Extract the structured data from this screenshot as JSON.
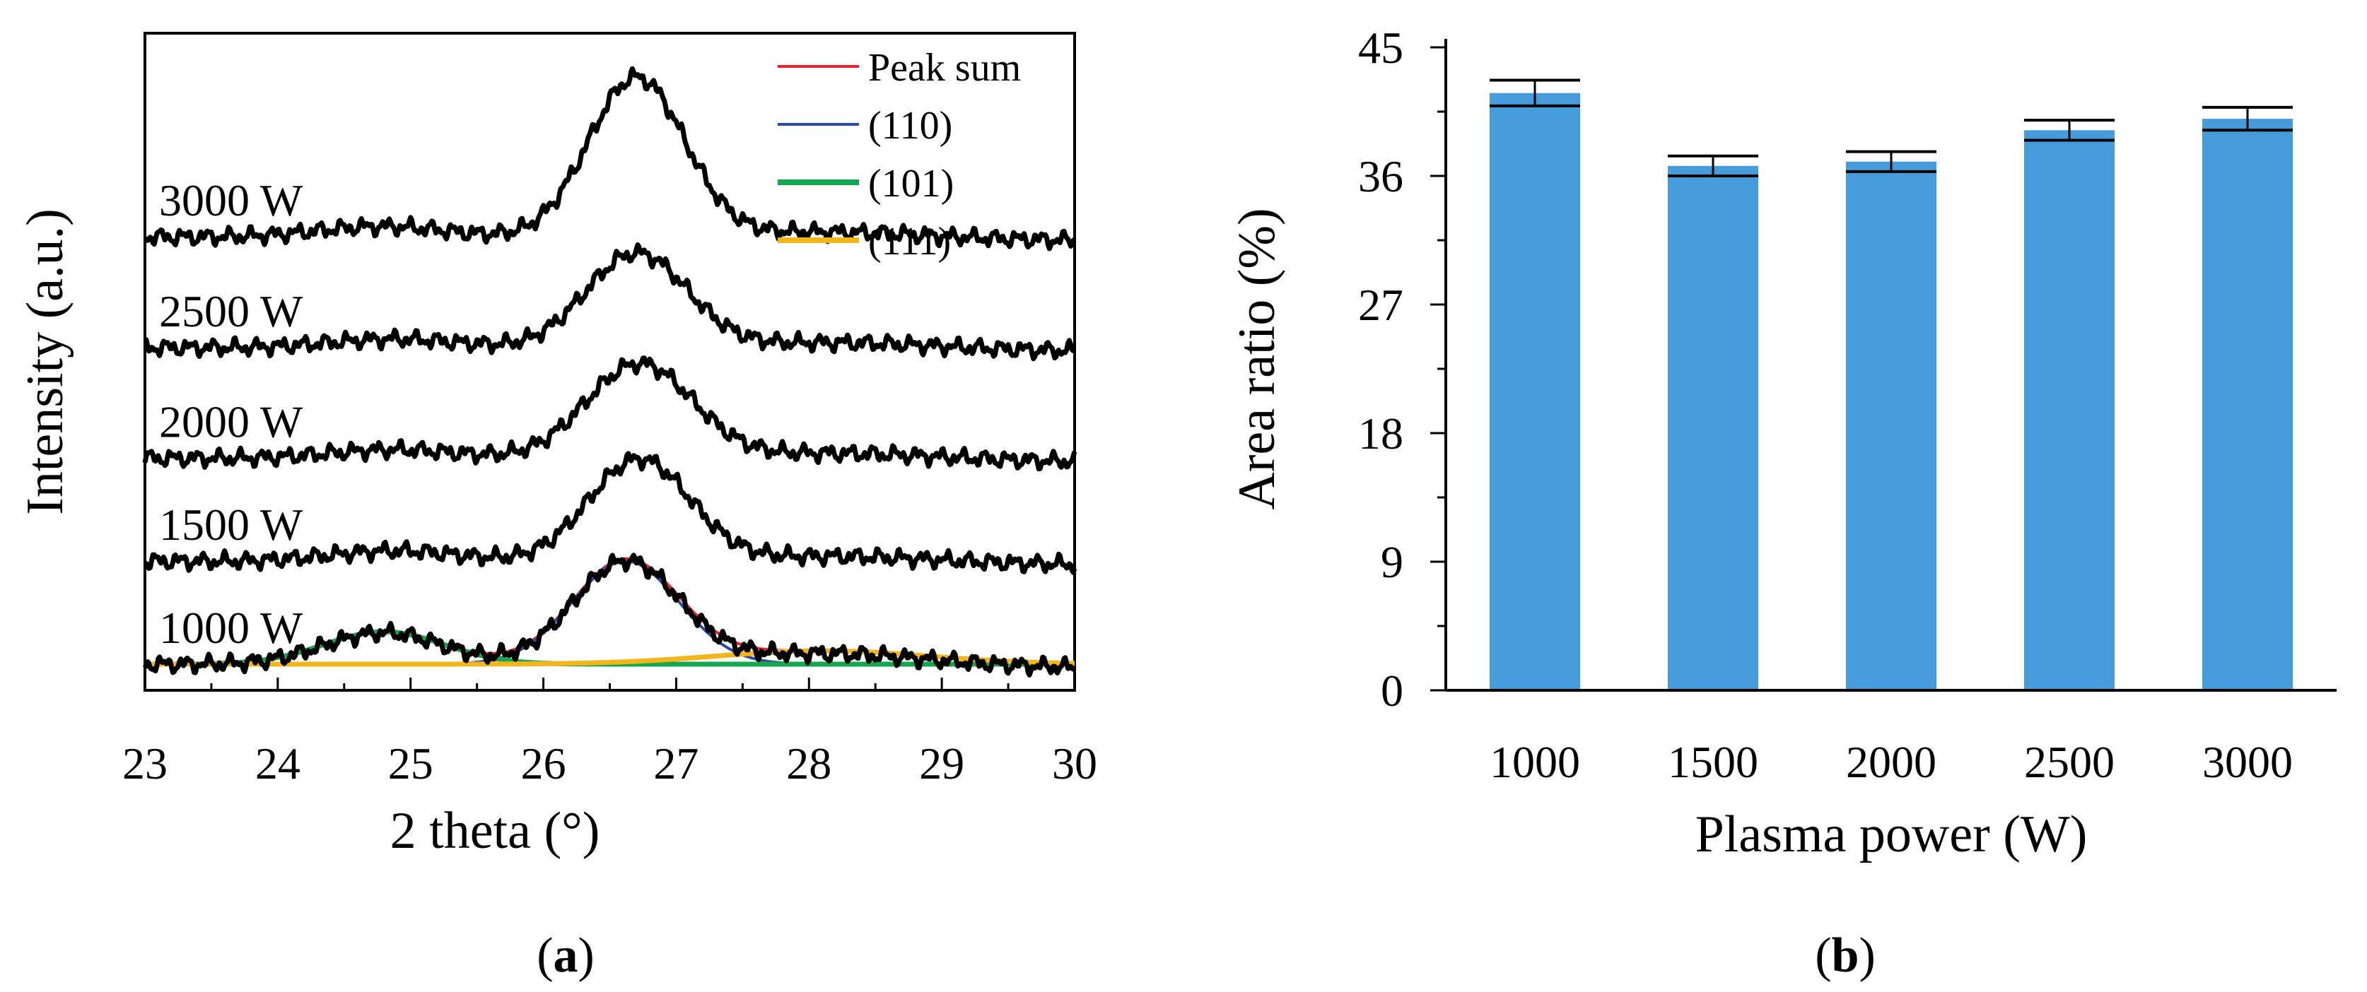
{
  "chart_data": [
    {
      "type": "line",
      "panel_label": "a",
      "xlabel": "2 theta (°)",
      "ylabel": "Intensity (a.u.)",
      "xlim": [
        23,
        30
      ],
      "x_ticks": [
        23,
        24,
        25,
        26,
        27,
        28,
        29,
        30
      ],
      "series": [
        {
          "name": "1000 W",
          "label": "1000 W",
          "offset": 0,
          "peaks": [
            {
              "center": 26.62,
              "height": 0.27,
              "width": 0.4
            },
            {
              "center": 24.8,
              "height": 0.085,
              "width": 0.45
            },
            {
              "center": 28.1,
              "height": 0.035,
              "width": 0.8
            }
          ]
        },
        {
          "name": "1500 W",
          "label": "1500 W",
          "offset": 0.27,
          "peaks": [
            {
              "center": 26.72,
              "height": 0.27,
              "width": 0.38
            },
            {
              "center": 24.9,
              "height": 0.03,
              "width": 0.5
            },
            {
              "center": 28.2,
              "height": 0.02,
              "width": 0.8
            }
          ]
        },
        {
          "name": "2000 W",
          "label": "2000 W",
          "offset": 0.54,
          "peaks": [
            {
              "center": 26.72,
              "height": 0.25,
              "width": 0.4
            },
            {
              "center": 24.9,
              "height": 0.025,
              "width": 0.5
            },
            {
              "center": 28.2,
              "height": 0.02,
              "width": 0.8
            }
          ]
        },
        {
          "name": "2500 W",
          "label": "2500 W",
          "offset": 0.83,
          "peaks": [
            {
              "center": 26.7,
              "height": 0.25,
              "width": 0.38
            },
            {
              "center": 24.9,
              "height": 0.025,
              "width": 0.5
            },
            {
              "center": 28.2,
              "height": 0.02,
              "width": 0.8
            }
          ]
        },
        {
          "name": "3000 W",
          "label": "3000 W",
          "offset": 1.12,
          "peaks": [
            {
              "center": 26.7,
              "height": 0.42,
              "width": 0.36
            },
            {
              "center": 24.8,
              "height": 0.03,
              "width": 0.5
            },
            {
              "center": 28.1,
              "height": 0.02,
              "width": 0.8
            }
          ]
        }
      ],
      "fits": [
        {
          "name": "Peak sum",
          "color": "#e8222e"
        },
        {
          "name": "(110)",
          "color": "#2e4aa8",
          "center": 26.62,
          "height": 0.27,
          "width": 0.4
        },
        {
          "name": "(101)",
          "color": "#14a750",
          "center": 24.8,
          "height": 0.085,
          "width": 0.45
        },
        {
          "name": "(111)",
          "color": "#f2b51a",
          "center": 28.1,
          "height": 0.035,
          "width": 0.8
        }
      ],
      "legend": [
        {
          "label": "Peak sum",
          "color": "#e8222e"
        },
        {
          "label": "(110)",
          "color": "#2e4aa8"
        },
        {
          "label": "(101)",
          "color": "#14a750"
        },
        {
          "label": "(111)",
          "color": "#f2b51a"
        }
      ]
    },
    {
      "type": "bar",
      "panel_label": "b",
      "xlabel": "Plasma power (W)",
      "ylabel": "Area ratio (%)",
      "ylim": [
        0,
        45
      ],
      "y_ticks": [
        0,
        9,
        18,
        27,
        36,
        45
      ],
      "categories": [
        "1000",
        "1500",
        "2000",
        "2500",
        "3000"
      ],
      "values": [
        41.8,
        36.7,
        37.0,
        39.2,
        40.0
      ],
      "errors": [
        0.9,
        0.7,
        0.7,
        0.7,
        0.8
      ],
      "color": "#469bdb"
    }
  ]
}
